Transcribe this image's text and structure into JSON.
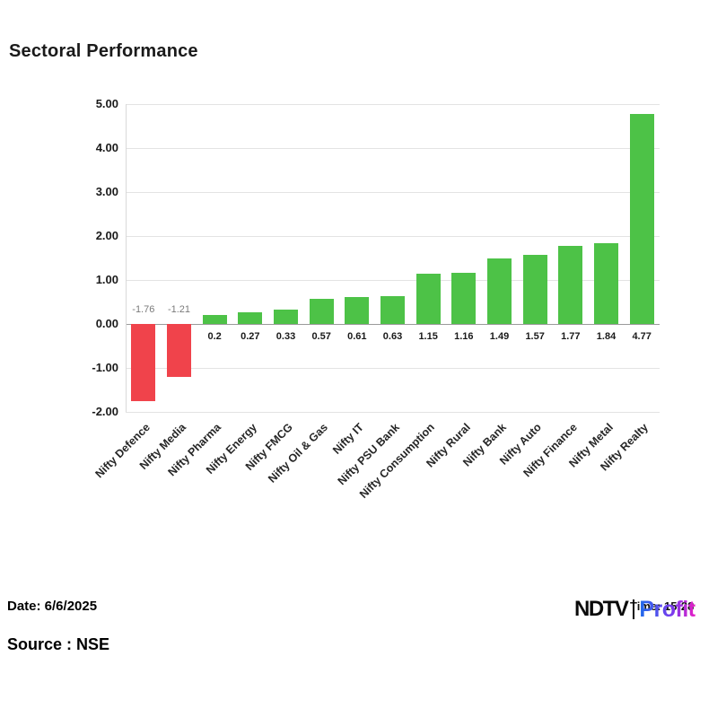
{
  "title": "Sectoral Performance",
  "footer": {
    "date_label": "Date: 6/6/2025",
    "source_label": "Source : NSE",
    "time_label": "Time: 15:28"
  },
  "logo": {
    "ndtv": "NDTV",
    "profit": "Profit"
  },
  "chart_data": {
    "type": "bar",
    "title": "Sectoral Performance",
    "xlabel": "",
    "ylabel": "",
    "categories": [
      "Nifty Defence",
      "Nifty Media",
      "Nifty Pharma",
      "Nifty Energy",
      "Nifty FMCG",
      "Nifty Oil & Gas",
      "Nifty IT",
      "Nifty PSU Bank",
      "Nifty Consumption",
      "Nifty Rural",
      "Nifty Bank",
      "Nifty Auto",
      "Nifty Finance",
      "Nifty Metal",
      "Nifty Realty"
    ],
    "values": [
      -1.76,
      -1.21,
      0.2,
      0.27,
      0.33,
      0.57,
      0.61,
      0.63,
      1.15,
      1.16,
      1.49,
      1.57,
      1.77,
      1.84,
      4.77
    ],
    "value_labels": [
      "-1.76",
      "-1.21",
      "0.2",
      "0.27",
      "0.33",
      "0.57",
      "0.61",
      "0.63",
      "1.15",
      "1.16",
      "1.49",
      "1.57",
      "1.77",
      "1.84",
      "4.77"
    ],
    "ylim": [
      -2,
      5
    ],
    "yticks": [
      5,
      4,
      3,
      2,
      1,
      0,
      -1,
      -2
    ],
    "ytick_labels": [
      "5.00",
      "4.00",
      "3.00",
      "2.00",
      "1.00",
      "0.00",
      "-1.00",
      "-2.00"
    ],
    "grid": true,
    "legend": "none",
    "colors": {
      "positive": "#4dc247",
      "negative": "#f0434b",
      "gridline": "#e3e3e3",
      "zero_line": "#9a9a9a"
    }
  }
}
